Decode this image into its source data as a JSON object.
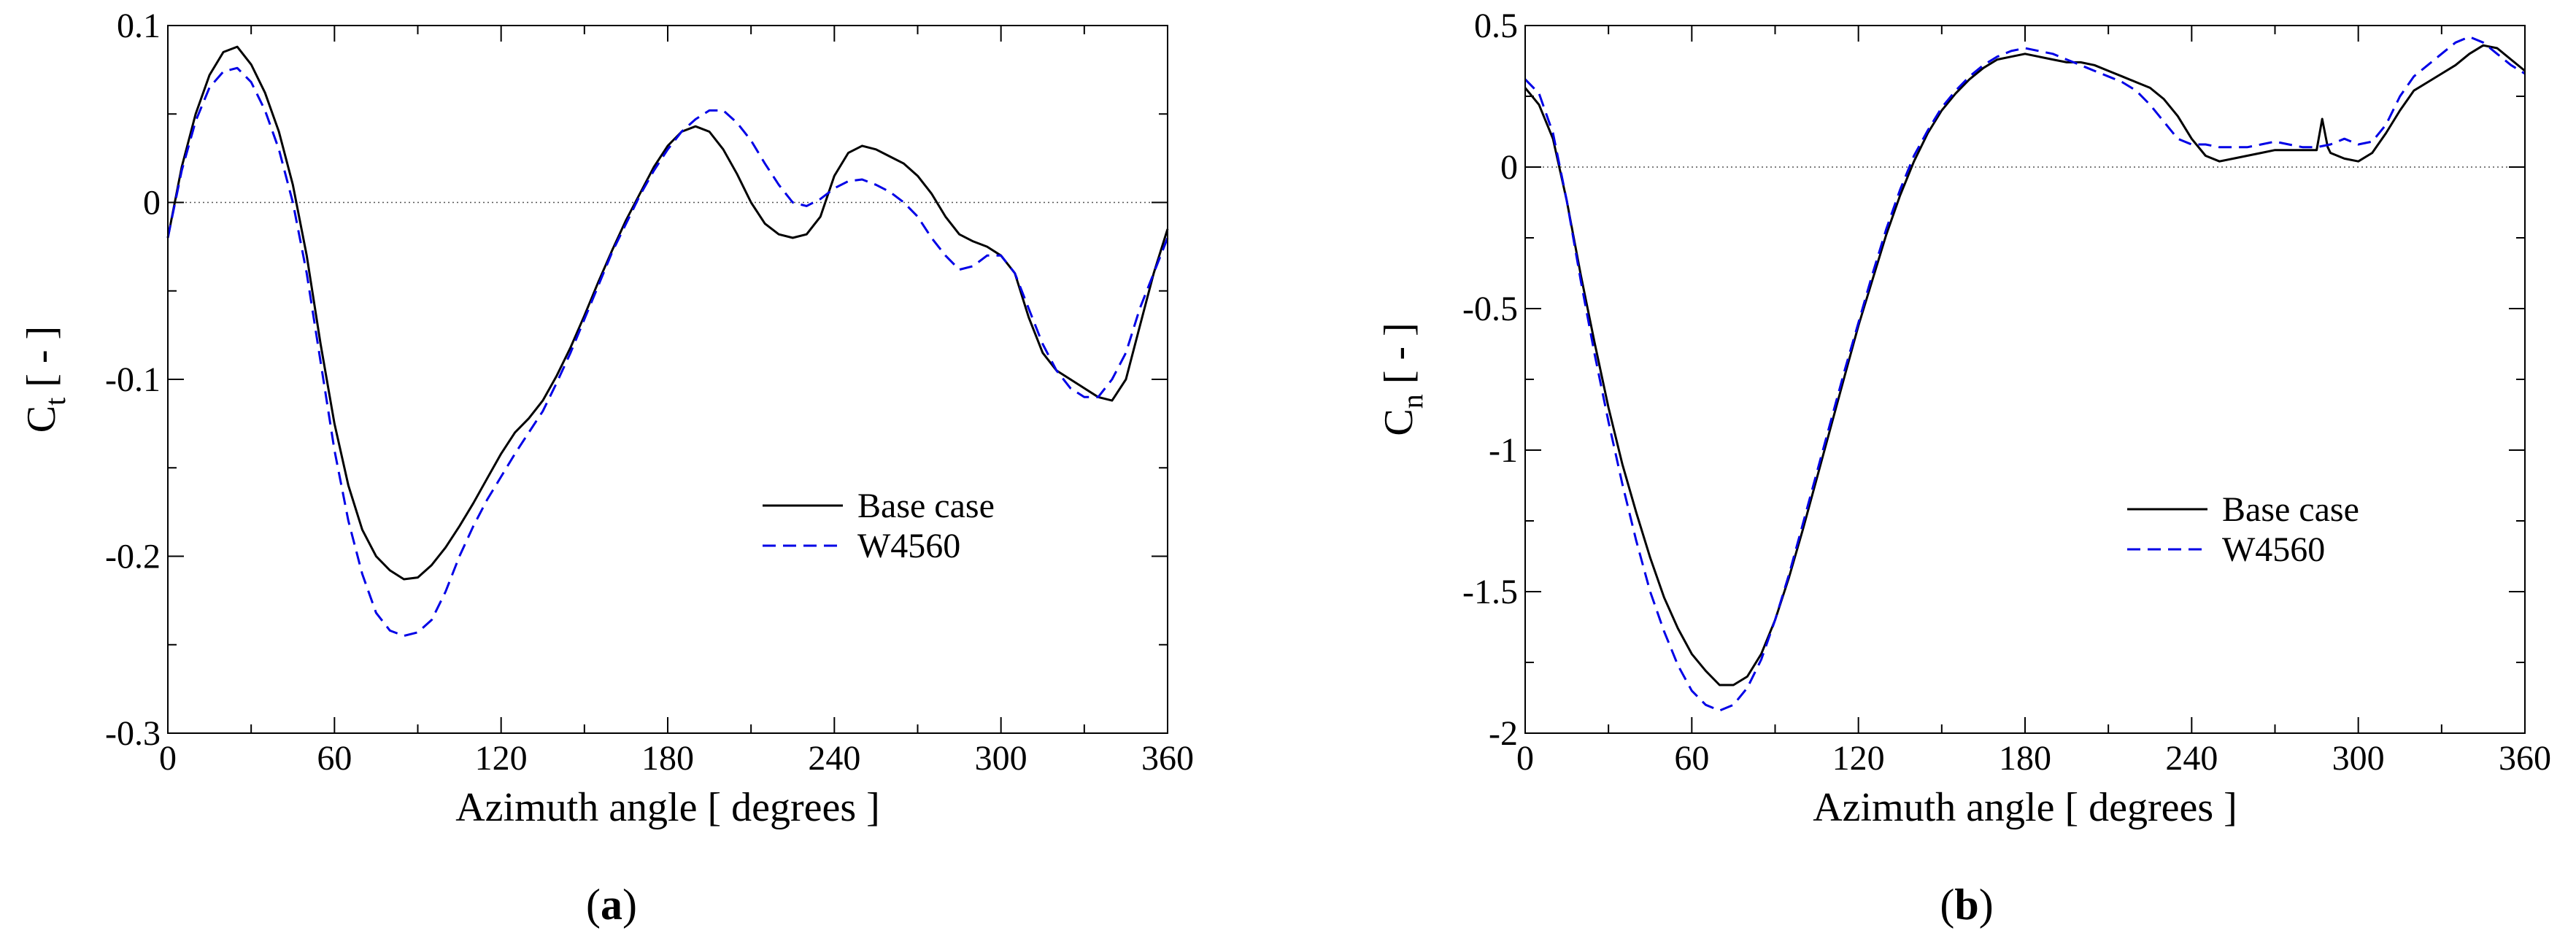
{
  "chart_data": [
    {
      "id": "a",
      "type": "line",
      "caption": "(a)",
      "caption_letter": "a",
      "xlabel": "Azimuth angle [ degrees ]",
      "ylabel_main": "C",
      "ylabel_sub": "t",
      "ylabel_rest": " [ - ]",
      "xlim": [
        0,
        360
      ],
      "ylim": [
        -0.3,
        0.1
      ],
      "xticks": [
        0,
        60,
        120,
        180,
        240,
        300,
        360
      ],
      "xtick_labels": [
        "0",
        "60",
        "120",
        "180",
        "240",
        "300",
        "360"
      ],
      "yticks": [
        -0.3,
        -0.2,
        -0.1,
        0,
        0.1
      ],
      "ytick_labels": [
        "-0.3",
        "-0.2",
        "-0.1",
        "0",
        "0.1"
      ],
      "zero_line": true,
      "legend_position": "center-right",
      "series": [
        {
          "name": "Base case",
          "color": "#000000",
          "dash": "solid",
          "x": [
            0,
            5,
            10,
            15,
            20,
            25,
            30,
            35,
            40,
            45,
            50,
            55,
            60,
            65,
            70,
            75,
            80,
            85,
            90,
            95,
            100,
            105,
            110,
            115,
            120,
            125,
            130,
            135,
            140,
            145,
            150,
            155,
            160,
            165,
            170,
            175,
            180,
            185,
            190,
            195,
            200,
            205,
            210,
            215,
            220,
            225,
            230,
            235,
            240,
            245,
            250,
            255,
            260,
            265,
            270,
            275,
            280,
            285,
            290,
            295,
            300,
            305,
            310,
            315,
            320,
            325,
            330,
            335,
            340,
            345,
            350,
            355,
            360
          ],
          "values": [
            -0.02,
            0.02,
            0.05,
            0.072,
            0.085,
            0.088,
            0.078,
            0.062,
            0.04,
            0.01,
            -0.03,
            -0.08,
            -0.125,
            -0.16,
            -0.185,
            -0.2,
            -0.208,
            -0.213,
            -0.212,
            -0.205,
            -0.195,
            -0.183,
            -0.17,
            -0.156,
            -0.142,
            -0.13,
            -0.122,
            -0.112,
            -0.098,
            -0.082,
            -0.064,
            -0.045,
            -0.027,
            -0.01,
            0.005,
            0.02,
            0.032,
            0.04,
            0.043,
            0.04,
            0.03,
            0.016,
            0.0,
            -0.012,
            -0.018,
            -0.02,
            -0.018,
            -0.008,
            0.015,
            0.028,
            0.032,
            0.03,
            0.026,
            0.022,
            0.015,
            0.005,
            -0.008,
            -0.018,
            -0.022,
            -0.025,
            -0.03,
            -0.04,
            -0.065,
            -0.085,
            -0.095,
            -0.1,
            -0.105,
            -0.11,
            -0.112,
            -0.1,
            -0.07,
            -0.04,
            -0.015
          ]
        },
        {
          "name": "W4560",
          "color": "#0000e6",
          "dash": "dashed",
          "x": [
            0,
            5,
            10,
            15,
            20,
            25,
            30,
            35,
            40,
            45,
            50,
            55,
            60,
            65,
            70,
            75,
            80,
            85,
            90,
            95,
            100,
            105,
            110,
            115,
            120,
            125,
            130,
            135,
            140,
            145,
            150,
            155,
            160,
            165,
            170,
            175,
            180,
            185,
            190,
            195,
            200,
            205,
            210,
            215,
            220,
            225,
            230,
            235,
            240,
            245,
            250,
            255,
            260,
            265,
            270,
            275,
            280,
            285,
            290,
            295,
            300,
            305,
            310,
            315,
            320,
            325,
            330,
            335,
            340,
            345,
            350,
            355,
            360
          ],
          "values": [
            -0.02,
            0.018,
            0.046,
            0.065,
            0.074,
            0.076,
            0.068,
            0.052,
            0.03,
            0.0,
            -0.04,
            -0.09,
            -0.14,
            -0.18,
            -0.21,
            -0.232,
            -0.242,
            -0.245,
            -0.243,
            -0.236,
            -0.22,
            -0.2,
            -0.183,
            -0.168,
            -0.155,
            -0.142,
            -0.13,
            -0.118,
            -0.102,
            -0.085,
            -0.066,
            -0.047,
            -0.028,
            -0.012,
            0.004,
            0.018,
            0.03,
            0.04,
            0.047,
            0.052,
            0.052,
            0.045,
            0.035,
            0.022,
            0.01,
            0.0,
            -0.002,
            0.002,
            0.008,
            0.012,
            0.013,
            0.01,
            0.006,
            0.0,
            -0.008,
            -0.02,
            -0.03,
            -0.038,
            -0.036,
            -0.03,
            -0.03,
            -0.04,
            -0.06,
            -0.08,
            -0.095,
            -0.105,
            -0.11,
            -0.11,
            -0.1,
            -0.085,
            -0.06,
            -0.04,
            -0.02
          ]
        }
      ]
    },
    {
      "id": "b",
      "type": "line",
      "caption": "(b)",
      "caption_letter": "b",
      "xlabel": "Azimuth angle [ degrees ]",
      "ylabel_main": "C",
      "ylabel_sub": "n",
      "ylabel_rest": " [ - ]",
      "xlim": [
        0,
        360
      ],
      "ylim": [
        -2,
        0.5
      ],
      "xticks": [
        0,
        60,
        120,
        180,
        240,
        300,
        360
      ],
      "xtick_labels": [
        "0",
        "60",
        "120",
        "180",
        "240",
        "300",
        "360"
      ],
      "yticks": [
        -2,
        -1.5,
        -1,
        -0.5,
        0,
        0.5
      ],
      "ytick_labels": [
        "-2",
        "-1.5",
        "-1",
        "-0.5",
        "0",
        "0.5"
      ],
      "zero_line": true,
      "legend_position": "center-right",
      "series": [
        {
          "name": "Base case",
          "color": "#000000",
          "dash": "solid",
          "x": [
            0,
            5,
            10,
            15,
            20,
            25,
            30,
            35,
            40,
            45,
            50,
            55,
            60,
            65,
            70,
            75,
            80,
            85,
            90,
            95,
            100,
            105,
            110,
            115,
            120,
            125,
            130,
            135,
            140,
            145,
            150,
            155,
            160,
            165,
            170,
            175,
            180,
            185,
            190,
            195,
            200,
            205,
            210,
            215,
            220,
            225,
            230,
            235,
            240,
            245,
            250,
            255,
            260,
            265,
            270,
            275,
            280,
            285,
            287,
            289,
            290,
            295,
            300,
            305,
            310,
            315,
            320,
            325,
            330,
            335,
            340,
            345,
            350,
            355,
            360
          ],
          "values": [
            0.28,
            0.22,
            0.1,
            -0.12,
            -0.38,
            -0.62,
            -0.85,
            -1.05,
            -1.22,
            -1.38,
            -1.52,
            -1.63,
            -1.72,
            -1.78,
            -1.83,
            -1.83,
            -1.8,
            -1.72,
            -1.6,
            -1.45,
            -1.28,
            -1.1,
            -0.92,
            -0.74,
            -0.56,
            -0.4,
            -0.24,
            -0.1,
            0.02,
            0.12,
            0.2,
            0.26,
            0.31,
            0.35,
            0.38,
            0.39,
            0.4,
            0.39,
            0.38,
            0.37,
            0.37,
            0.36,
            0.34,
            0.32,
            0.3,
            0.28,
            0.24,
            0.18,
            0.1,
            0.04,
            0.02,
            0.03,
            0.04,
            0.05,
            0.06,
            0.06,
            0.06,
            0.06,
            0.17,
            0.07,
            0.05,
            0.03,
            0.02,
            0.05,
            0.12,
            0.2,
            0.27,
            0.3,
            0.33,
            0.36,
            0.4,
            0.43,
            0.42,
            0.38,
            0.34
          ]
        },
        {
          "name": "W4560",
          "color": "#0000e6",
          "dash": "dashed",
          "x": [
            0,
            5,
            10,
            15,
            20,
            25,
            30,
            35,
            40,
            45,
            50,
            55,
            60,
            65,
            70,
            75,
            80,
            85,
            90,
            95,
            100,
            105,
            110,
            115,
            120,
            125,
            130,
            135,
            140,
            145,
            150,
            155,
            160,
            165,
            170,
            175,
            180,
            185,
            190,
            195,
            200,
            205,
            210,
            215,
            220,
            225,
            230,
            235,
            240,
            245,
            250,
            255,
            260,
            265,
            270,
            275,
            280,
            285,
            290,
            295,
            300,
            305,
            310,
            315,
            320,
            325,
            330,
            335,
            340,
            345,
            350,
            355,
            360
          ],
          "values": [
            0.31,
            0.26,
            0.12,
            -0.12,
            -0.4,
            -0.66,
            -0.9,
            -1.12,
            -1.32,
            -1.5,
            -1.64,
            -1.76,
            -1.85,
            -1.9,
            -1.92,
            -1.9,
            -1.84,
            -1.74,
            -1.6,
            -1.44,
            -1.26,
            -1.08,
            -0.9,
            -0.72,
            -0.55,
            -0.38,
            -0.22,
            -0.08,
            0.04,
            0.13,
            0.21,
            0.27,
            0.32,
            0.36,
            0.39,
            0.41,
            0.42,
            0.41,
            0.4,
            0.38,
            0.36,
            0.34,
            0.32,
            0.3,
            0.27,
            0.22,
            0.16,
            0.1,
            0.08,
            0.08,
            0.07,
            0.07,
            0.07,
            0.08,
            0.09,
            0.08,
            0.07,
            0.07,
            0.08,
            0.1,
            0.08,
            0.09,
            0.15,
            0.25,
            0.32,
            0.36,
            0.4,
            0.44,
            0.46,
            0.44,
            0.4,
            0.36,
            0.33
          ]
        }
      ]
    }
  ]
}
